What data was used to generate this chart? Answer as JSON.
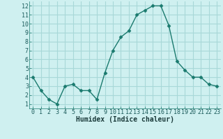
{
  "x": [
    0,
    1,
    2,
    3,
    4,
    5,
    6,
    7,
    8,
    9,
    10,
    11,
    12,
    13,
    14,
    15,
    16,
    17,
    18,
    19,
    20,
    21,
    22,
    23
  ],
  "y": [
    4,
    2.5,
    1.5,
    1,
    3,
    3.2,
    2.5,
    2.5,
    1.5,
    4.5,
    7,
    8.5,
    9.2,
    11,
    11.5,
    12,
    12,
    9.8,
    5.8,
    4.8,
    4,
    4,
    3.2,
    3
  ],
  "line_color": "#1a7a6e",
  "marker": "D",
  "marker_size": 2.5,
  "bg_color": "#cff0f0",
  "grid_color": "#a8d8d8",
  "xlabel": "Humidex (Indice chaleur)",
  "xlabel_fontsize": 7,
  "tick_fontsize": 6,
  "xlim": [
    -0.5,
    23.5
  ],
  "ylim": [
    0.5,
    12.5
  ],
  "yticks": [
    1,
    2,
    3,
    4,
    5,
    6,
    7,
    8,
    9,
    10,
    11,
    12
  ],
  "xticks": [
    0,
    1,
    2,
    3,
    4,
    5,
    6,
    7,
    8,
    9,
    10,
    11,
    12,
    13,
    14,
    15,
    16,
    17,
    18,
    19,
    20,
    21,
    22,
    23
  ],
  "spine_color": "#1a7a6e",
  "line_width": 1.0
}
